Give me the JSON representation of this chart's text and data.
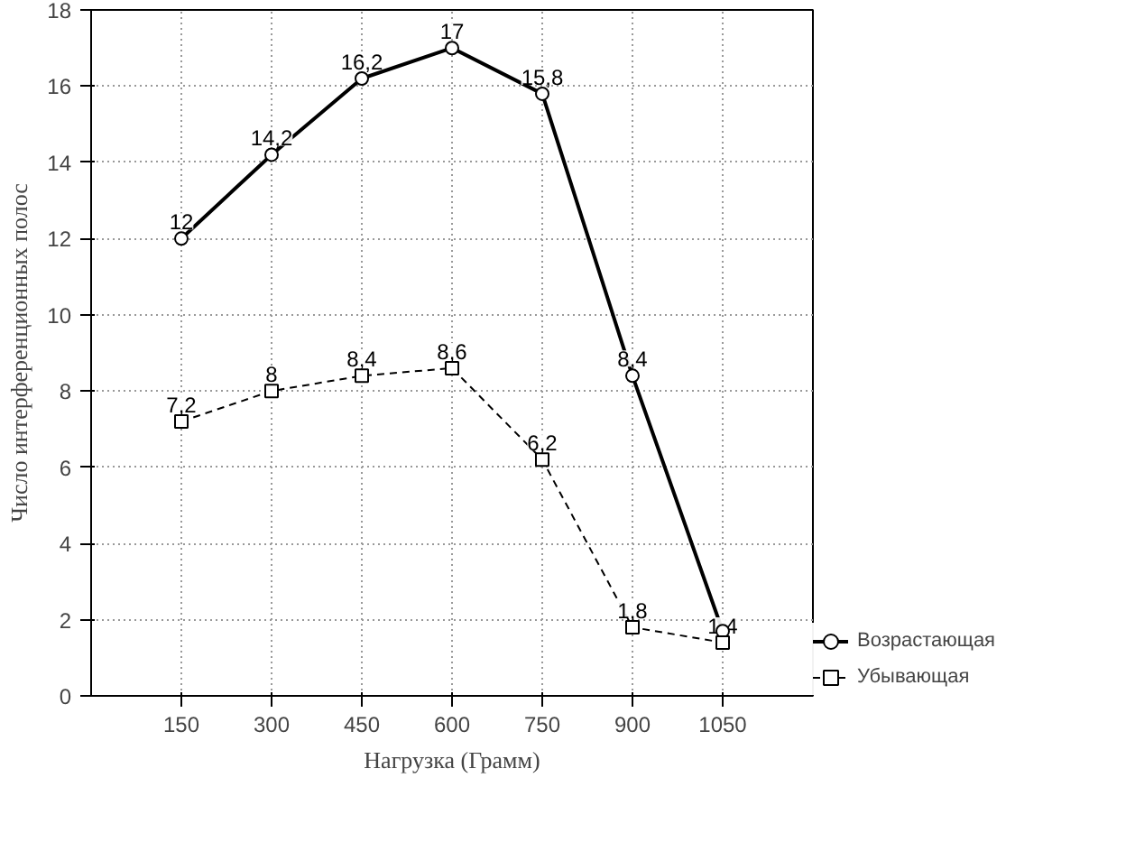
{
  "chart_data": {
    "type": "line",
    "xlabel": "Нагрузка (Грамм)",
    "ylabel": "Число интерференционных полос",
    "x": [
      150,
      300,
      450,
      600,
      750,
      900,
      1050
    ],
    "series": [
      {
        "name": "Возрастающая",
        "color": "#000000",
        "marker": "circle",
        "line_style": "solid",
        "values": [
          12,
          14.2,
          16.2,
          17,
          15.8,
          8.4,
          1.7
        ],
        "value_labels": [
          "12",
          "14,2",
          "16,2",
          "17",
          "15,8",
          "8,4",
          null
        ]
      },
      {
        "name": "Убывающая",
        "color": "#000000",
        "marker": "square",
        "line_style": "dashed",
        "values": [
          7.2,
          8,
          8.4,
          8.6,
          6.2,
          1.8,
          1.4
        ],
        "value_labels": [
          "7,2",
          "8",
          "8,4",
          "8,6",
          "6,2",
          "1,8",
          "1,4"
        ]
      }
    ],
    "xlim": [
      0,
      1200
    ],
    "xticks": [
      150,
      300,
      450,
      600,
      750,
      900,
      1050
    ],
    "ylim": [
      0,
      18
    ],
    "yticks": [
      0,
      2,
      4,
      6,
      8,
      10,
      12,
      14,
      16,
      18
    ],
    "grid": true,
    "legend": "bottom right"
  }
}
